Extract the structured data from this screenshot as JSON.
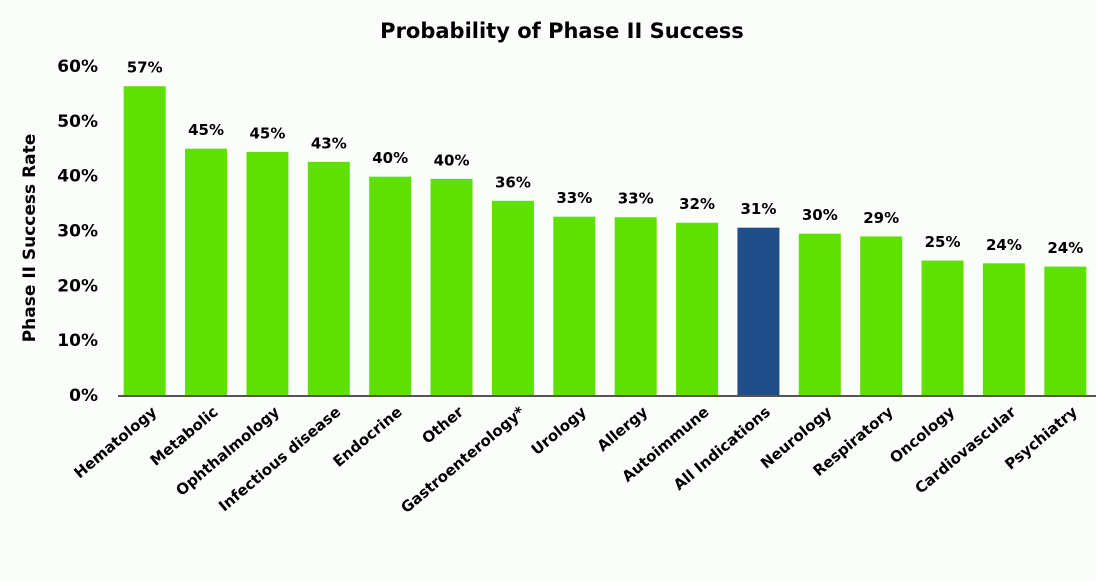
{
  "chart_data": {
    "type": "bar",
    "title": "Probability of Phase II Success",
    "y_label": "Phase II Success Rate",
    "categories": [
      "Hematology",
      "Metabolic",
      "Ophthalmology",
      "Infectious disease",
      "Endocrine",
      "Other",
      "Gastroenterology*",
      "Urology",
      "Allergy",
      "Autoimmune",
      "All Indications",
      "Neurology",
      "Respiratory",
      "Oncology",
      "Cardiovascular",
      "Psychiatry"
    ],
    "values": [
      56.5,
      45.1,
      44.5,
      42.7,
      40.0,
      39.6,
      35.6,
      32.7,
      32.6,
      31.6,
      30.7,
      29.6,
      29.1,
      24.7,
      24.2,
      23.6
    ],
    "value_labels": [
      "57%",
      "45%",
      "45%",
      "43%",
      "40%",
      "40%",
      "36%",
      "33%",
      "33%",
      "32%",
      "31%",
      "30%",
      "29%",
      "25%",
      "24%",
      "24%"
    ],
    "colors": [
      "#5ee000",
      "#5ee000",
      "#5ee000",
      "#5ee000",
      "#5ee000",
      "#5ee000",
      "#5ee000",
      "#5ee000",
      "#5ee000",
      "#5ee000",
      "#1f4e89",
      "#5ee000",
      "#5ee000",
      "#5ee000",
      "#5ee000",
      "#5ee000"
    ],
    "ylim": [
      0,
      60
    ],
    "yticks": [
      {
        "value": 0,
        "label": "0%"
      },
      {
        "value": 10,
        "label": "10%"
      },
      {
        "value": 20,
        "label": "20%"
      },
      {
        "value": 30,
        "label": "30%"
      },
      {
        "value": 40,
        "label": "40%"
      },
      {
        "value": 50,
        "label": "50%"
      },
      {
        "value": 60,
        "label": "60%"
      }
    ],
    "grid": false
  }
}
